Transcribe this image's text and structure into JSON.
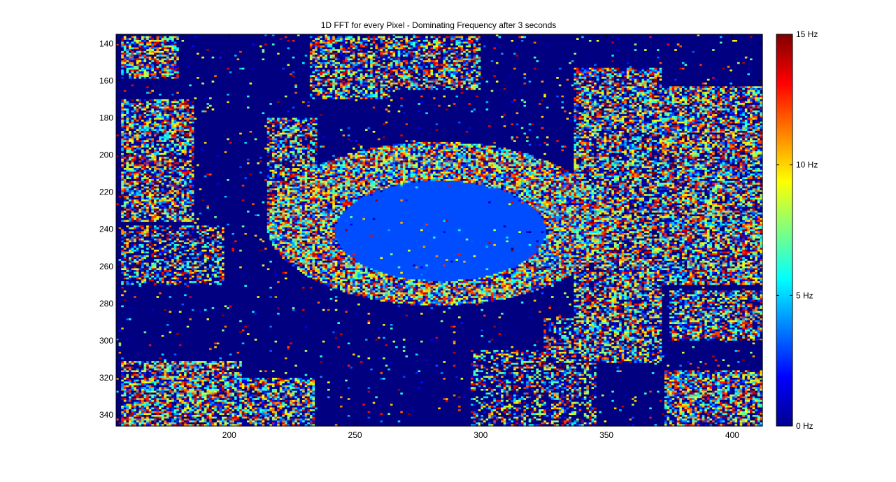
{
  "chart_data": {
    "type": "heatmap",
    "title": "1D FFT for every Pixel - Dominating Frequency after 3 seconds",
    "xlabel": "",
    "ylabel": "",
    "xlim": [
      155,
      412
    ],
    "ylim": [
      135,
      346
    ],
    "y_reversed": true,
    "grid": false,
    "colormap": "jet",
    "x_ticks": [
      200,
      250,
      300,
      350,
      400
    ],
    "y_ticks": [
      140,
      160,
      180,
      200,
      220,
      240,
      260,
      280,
      300,
      320,
      340
    ],
    "colorbar": {
      "range": [
        0,
        15
      ],
      "ticks": [
        {
          "value": 0,
          "label": "0  Hz"
        },
        {
          "value": 5,
          "label": "5  Hz"
        },
        {
          "value": 10,
          "label": "10 Hz"
        },
        {
          "value": 15,
          "label": "15 Hz"
        }
      ]
    },
    "regions": [
      {
        "shape": "ellipse",
        "center": [
          284,
          241
        ],
        "radii": [
          42,
          27
        ],
        "value": 3,
        "noise": 0.02
      },
      {
        "shape": "ring",
        "center": [
          283,
          237
        ],
        "radii": [
          68,
          44
        ],
        "value": "noise",
        "density": 0.95
      },
      {
        "shape": "rect",
        "range_x": [
          157,
          180
        ],
        "range_y": [
          136,
          159
        ],
        "value": "noise",
        "density": 0.8
      },
      {
        "shape": "rect",
        "range_x": [
          157,
          186
        ],
        "range_y": [
          170,
          236
        ],
        "value": "noise",
        "density": 0.75
      },
      {
        "shape": "rect",
        "range_x": [
          157,
          198
        ],
        "range_y": [
          238,
          270
        ],
        "value": "noise",
        "density": 0.55
      },
      {
        "shape": "rect",
        "range_x": [
          157,
          205
        ],
        "range_y": [
          311,
          346
        ],
        "value": "noise",
        "density": 0.8
      },
      {
        "shape": "rect",
        "range_x": [
          205,
          234
        ],
        "range_y": [
          320,
          346
        ],
        "value": "noise",
        "density": 0.75
      },
      {
        "shape": "rect",
        "range_x": [
          215,
          235
        ],
        "range_y": [
          180,
          240
        ],
        "value": "noise",
        "density": 0.7
      },
      {
        "shape": "rect",
        "range_x": [
          232,
          264
        ],
        "range_y": [
          136,
          170
        ],
        "value": "noise",
        "density": 0.7
      },
      {
        "shape": "rect",
        "range_x": [
          256,
          300
        ],
        "range_y": [
          136,
          165
        ],
        "value": "noise",
        "density": 0.7
      },
      {
        "shape": "rect",
        "range_x": [
          337,
          372
        ],
        "range_y": [
          153,
          312
        ],
        "value": "noise",
        "density": 0.75
      },
      {
        "shape": "rect",
        "range_x": [
          370,
          412
        ],
        "range_y": [
          163,
          270
        ],
        "value": "noise",
        "density": 0.8
      },
      {
        "shape": "rect",
        "range_x": [
          375,
          412
        ],
        "range_y": [
          273,
          300
        ],
        "value": "noise",
        "density": 0.75
      },
      {
        "shape": "rect",
        "range_x": [
          373,
          412
        ],
        "range_y": [
          316,
          346
        ],
        "value": "noise",
        "density": 0.8
      },
      {
        "shape": "rect",
        "range_x": [
          325,
          346
        ],
        "range_y": [
          288,
          346
        ],
        "value": "noise",
        "density": 0.55
      },
      {
        "shape": "rect",
        "range_x": [
          296,
          328
        ],
        "range_y": [
          305,
          346
        ],
        "value": "noise",
        "density": 0.5
      }
    ]
  }
}
